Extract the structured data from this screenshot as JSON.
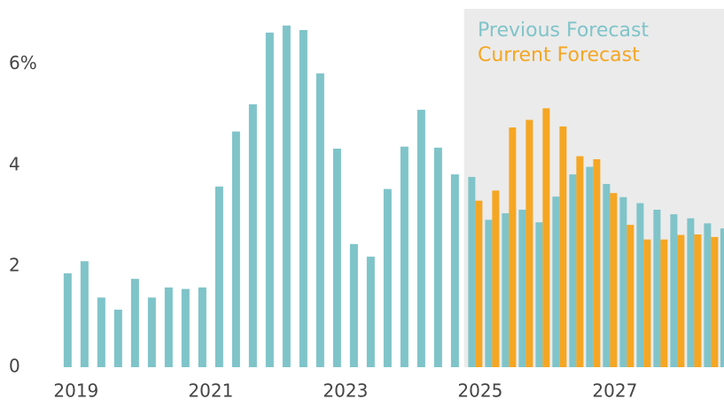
{
  "chart_data": {
    "type": "bar",
    "x": [
      2018.875,
      2019.125,
      2019.375,
      2019.625,
      2019.875,
      2020.125,
      2020.375,
      2020.625,
      2020.875,
      2021.125,
      2021.375,
      2021.625,
      2021.875,
      2022.125,
      2022.375,
      2022.625,
      2022.875,
      2023.125,
      2023.375,
      2023.625,
      2023.875,
      2024.125,
      2024.375,
      2024.625,
      2024.875,
      2025.125,
      2025.375,
      2025.625,
      2025.875,
      2026.125,
      2026.375,
      2026.625,
      2026.875,
      2027.125,
      2027.375,
      2027.625,
      2027.875,
      2028.125,
      2028.375,
      2028.625
    ],
    "series": [
      {
        "name": "Previous Forecast",
        "color": "#7fc4c9",
        "values": [
          1.86,
          2.1,
          1.38,
          1.14,
          1.75,
          1.38,
          1.58,
          1.55,
          1.58,
          3.58,
          4.67,
          5.21,
          6.63,
          6.77,
          6.68,
          5.82,
          4.33,
          2.44,
          2.19,
          3.53,
          4.37,
          5.1,
          4.35,
          3.82,
          3.77,
          2.92,
          3.05,
          3.12,
          2.87,
          3.38,
          3.82,
          3.97,
          3.63,
          3.37,
          3.25,
          3.12,
          3.03,
          2.95,
          2.85,
          2.75
        ]
      },
      {
        "name": "Current Forecast",
        "color": "#f5a623",
        "values": [
          null,
          null,
          null,
          null,
          null,
          null,
          null,
          null,
          null,
          null,
          null,
          null,
          null,
          null,
          null,
          null,
          null,
          null,
          null,
          null,
          null,
          null,
          null,
          null,
          3.3,
          3.5,
          4.75,
          4.9,
          5.13,
          4.77,
          4.18,
          4.12,
          3.45,
          2.82,
          2.53,
          2.53,
          2.62,
          2.63,
          2.58,
          null
        ]
      }
    ],
    "xlim": [
      2018.66,
      2028.62
    ],
    "xticks": [
      2019,
      2021,
      2023,
      2025,
      2027
    ],
    "ylim": [
      0,
      7.1
    ],
    "yticks": [
      0,
      2,
      4,
      {
        "value": 6,
        "label": "6%"
      }
    ],
    "shaded_region": [
      2024.76,
      2028.62
    ],
    "shade_color": "#ebebeb"
  }
}
